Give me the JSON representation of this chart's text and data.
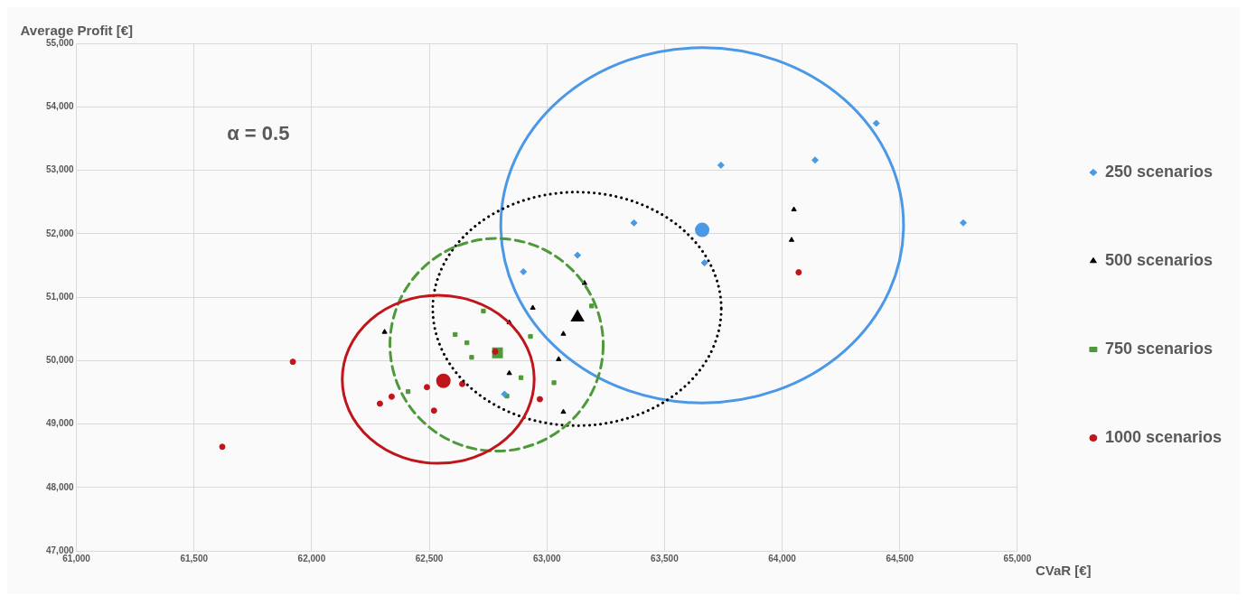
{
  "chart_data": {
    "type": "scatter",
    "xlabel": "CVaR [€]",
    "ylabel": "Average Profit [€]",
    "annotations": [
      "α = 0.5"
    ],
    "xlim": [
      61000,
      65000
    ],
    "xticks": [
      {
        "value": 61000,
        "label": "61,000"
      },
      {
        "value": 61500,
        "label": "61,500"
      },
      {
        "value": 62000,
        "label": "62,000"
      },
      {
        "value": 62500,
        "label": "62,500"
      },
      {
        "value": 63000,
        "label": "63,000"
      },
      {
        "value": 63500,
        "label": "63,500"
      },
      {
        "value": 64000,
        "label": "64,000"
      },
      {
        "value": 64500,
        "label": "64,500"
      },
      {
        "value": 65000,
        "label": "65,000"
      }
    ],
    "ylim": [
      47000,
      55000
    ],
    "yticks": [
      {
        "value": 47000,
        "label": "47,000"
      },
      {
        "value": 48000,
        "label": "48,000"
      },
      {
        "value": 49000,
        "label": "49,000"
      },
      {
        "value": 50000,
        "label": "50,000"
      },
      {
        "value": 51000,
        "label": "51,000"
      },
      {
        "value": 52000,
        "label": "52,000"
      },
      {
        "value": 53000,
        "label": "53,000"
      },
      {
        "value": 54000,
        "label": "54,000"
      },
      {
        "value": 55000,
        "label": "55,000"
      }
    ],
    "grid": true,
    "legend": "right",
    "series": [
      {
        "name": "250 scenarios",
        "color": "#4a98e6",
        "marker": "diamond",
        "x": [
          64400,
          64140,
          63740,
          63370,
          64770,
          63130,
          62900,
          63670,
          62820
        ],
        "values": [
          53740,
          53160,
          53080,
          52170,
          52170,
          51660,
          51400,
          51540,
          49470
        ]
      },
      {
        "name": "500 scenarios",
        "color": "#000000",
        "marker": "triangle",
        "x": [
          62310,
          62940,
          62840,
          63070,
          63160,
          63050,
          62840,
          63070,
          64050,
          64040
        ],
        "values": [
          50450,
          50830,
          50600,
          50420,
          51220,
          50020,
          49800,
          49190,
          52380,
          51900
        ]
      },
      {
        "name": "750 scenarios",
        "color": "#4e9a3a",
        "marker": "square",
        "x": [
          62730,
          62610,
          62660,
          62680,
          62930,
          62890,
          63030,
          62410,
          62830,
          63190
        ],
        "values": [
          50780,
          50410,
          50280,
          50050,
          50380,
          49730,
          49650,
          49510,
          49440,
          50860
        ]
      },
      {
        "name": "1000 scenarios",
        "color": "#c0151b",
        "marker": "circle",
        "x": [
          62780,
          62490,
          62640,
          62340,
          62290,
          62520,
          62970,
          61920,
          61620,
          64070
        ],
        "values": [
          50140,
          49580,
          49630,
          49430,
          49320,
          49210,
          49390,
          49980,
          48640,
          51390
        ]
      },
      {
        "color": "#4a98e6",
        "marker": "circle",
        "x": [
          63660
        ],
        "values": [
          52060
        ]
      },
      {
        "color": "#000000",
        "marker": "triangle",
        "x": [
          63130
        ],
        "values": [
          50680
        ]
      },
      {
        "color": "#4e9a3a",
        "marker": "square",
        "x": [
          62790
        ],
        "values": [
          50120
        ]
      },
      {
        "color": "#c0151b",
        "marker": "circle",
        "x": [
          62560
        ],
        "values": [
          49680
        ]
      }
    ]
  }
}
